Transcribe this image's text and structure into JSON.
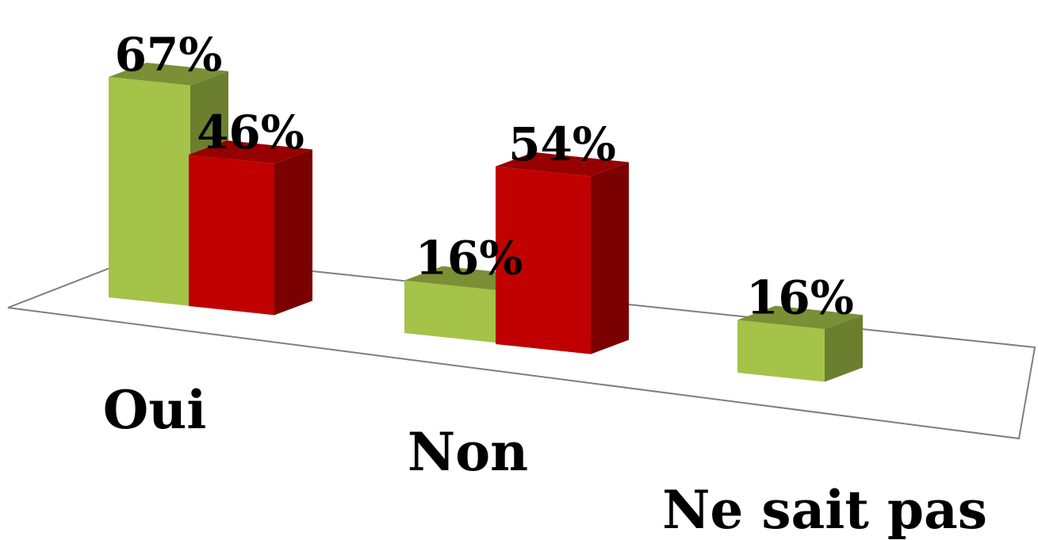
{
  "chart_data": {
    "type": "bar",
    "title": "",
    "xlabel": "",
    "ylabel": "",
    "categories": [
      "Oui",
      "Non",
      "Ne sait pas"
    ],
    "series": [
      {
        "color": "#a5c249",
        "values": [
          67,
          16,
          16
        ]
      },
      {
        "color": "#c00000",
        "values": [
          46,
          54,
          null
        ]
      }
    ],
    "value_labels": [
      [
        "67%",
        "16%",
        "16%"
      ],
      [
        "46%",
        "54%",
        ""
      ]
    ],
    "ylim": [
      0,
      70
    ],
    "grid": false,
    "legend": "none"
  }
}
